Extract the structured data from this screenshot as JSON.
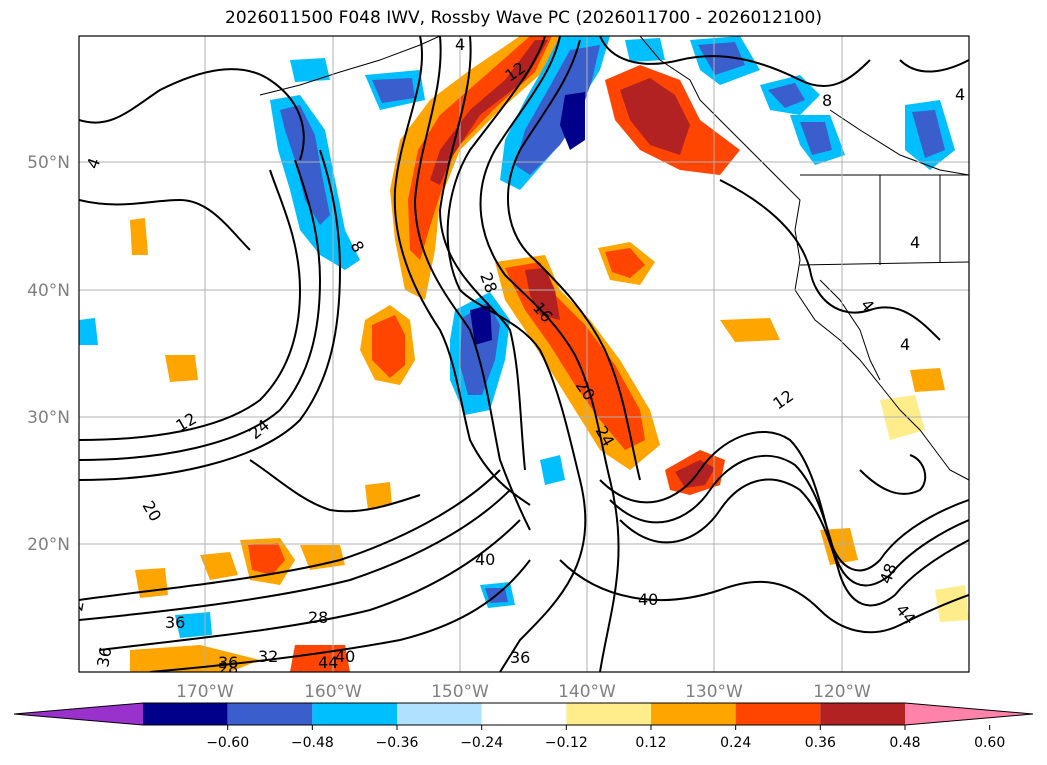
{
  "title": "2026011500 F048 IWV, Rossby Wave PC (2026011700 - 2026012100)",
  "map": {
    "lat_labels": [
      "50°N",
      "40°N",
      "30°N",
      "20°N"
    ],
    "lon_labels": [
      "170°W",
      "160°W",
      "150°W",
      "140°W",
      "130°W",
      "120°W"
    ],
    "contour_labels": [
      "12",
      "16",
      "20",
      "24",
      "28",
      "28",
      "8",
      "8",
      "4",
      "4",
      "4",
      "4",
      "4",
      "4",
      "12",
      "24",
      "20",
      "12",
      "40",
      "36",
      "36",
      "40",
      "44",
      "48",
      "44",
      "36",
      "32",
      "28",
      "36",
      "40",
      "2"
    ]
  },
  "colorbar": {
    "colors": [
      "#9932cc",
      "#00008b",
      "#3a5fcd",
      "#00bfff",
      "#b0e2ff",
      "#ffffff",
      "#ffec8b",
      "#ffa500",
      "#ff4500",
      "#b22222",
      "#ff82ab"
    ],
    "tick_labels": [
      "−0.60",
      "−0.48",
      "−0.36",
      "−0.24",
      "−0.12",
      "0.12",
      "0.24",
      "0.36",
      "0.48",
      "0.60"
    ]
  }
}
